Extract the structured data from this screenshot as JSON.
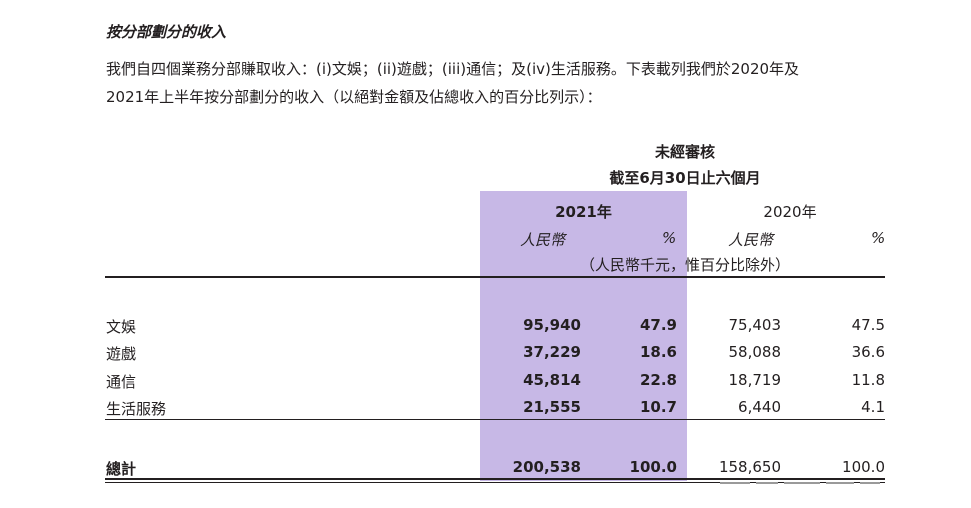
{
  "section_title": "按分部劃分的收入",
  "intro": {
    "line1": "我們自四個業務分部賺取收入：(i)文娛；(ii)遊戲；(iii)通信；及(iv)生活服務。下表載列我們於2020年及",
    "line2": "2021年上半年按分部劃分的收入（以絕對金額及佔總收入的百分比列示）："
  },
  "table": {
    "header_unaudited": "未經審核",
    "header_period": "截至6月30日止六個月",
    "year_2021": "2021年",
    "year_2020": "2020年",
    "currency": "人民幣",
    "percent": "%",
    "unit_note": "（人民幣千元，惟百分比除外）",
    "rows": [
      {
        "label": "文娛",
        "rmb_2021": "95,940",
        "pct_2021": "47.9",
        "rmb_2020": "75,403",
        "pct_2020": "47.5"
      },
      {
        "label": "遊戲",
        "rmb_2021": "37,229",
        "pct_2021": "18.6",
        "rmb_2020": "58,088",
        "pct_2020": "36.6"
      },
      {
        "label": "通信",
        "rmb_2021": "45,814",
        "pct_2021": "22.8",
        "rmb_2020": "18,719",
        "pct_2020": "11.8"
      },
      {
        "label": "生活服務",
        "rmb_2021": "21,555",
        "pct_2021": "10.7",
        "rmb_2020": "6,440",
        "pct_2020": "4.1"
      }
    ],
    "total": {
      "label": "總計",
      "rmb_2021": "200,538",
      "pct_2021": "100.0",
      "rmb_2020": "158,650",
      "pct_2020": "100.0"
    }
  },
  "colors": {
    "highlight_2021": "#c7b8e6",
    "text": "#231f20"
  }
}
